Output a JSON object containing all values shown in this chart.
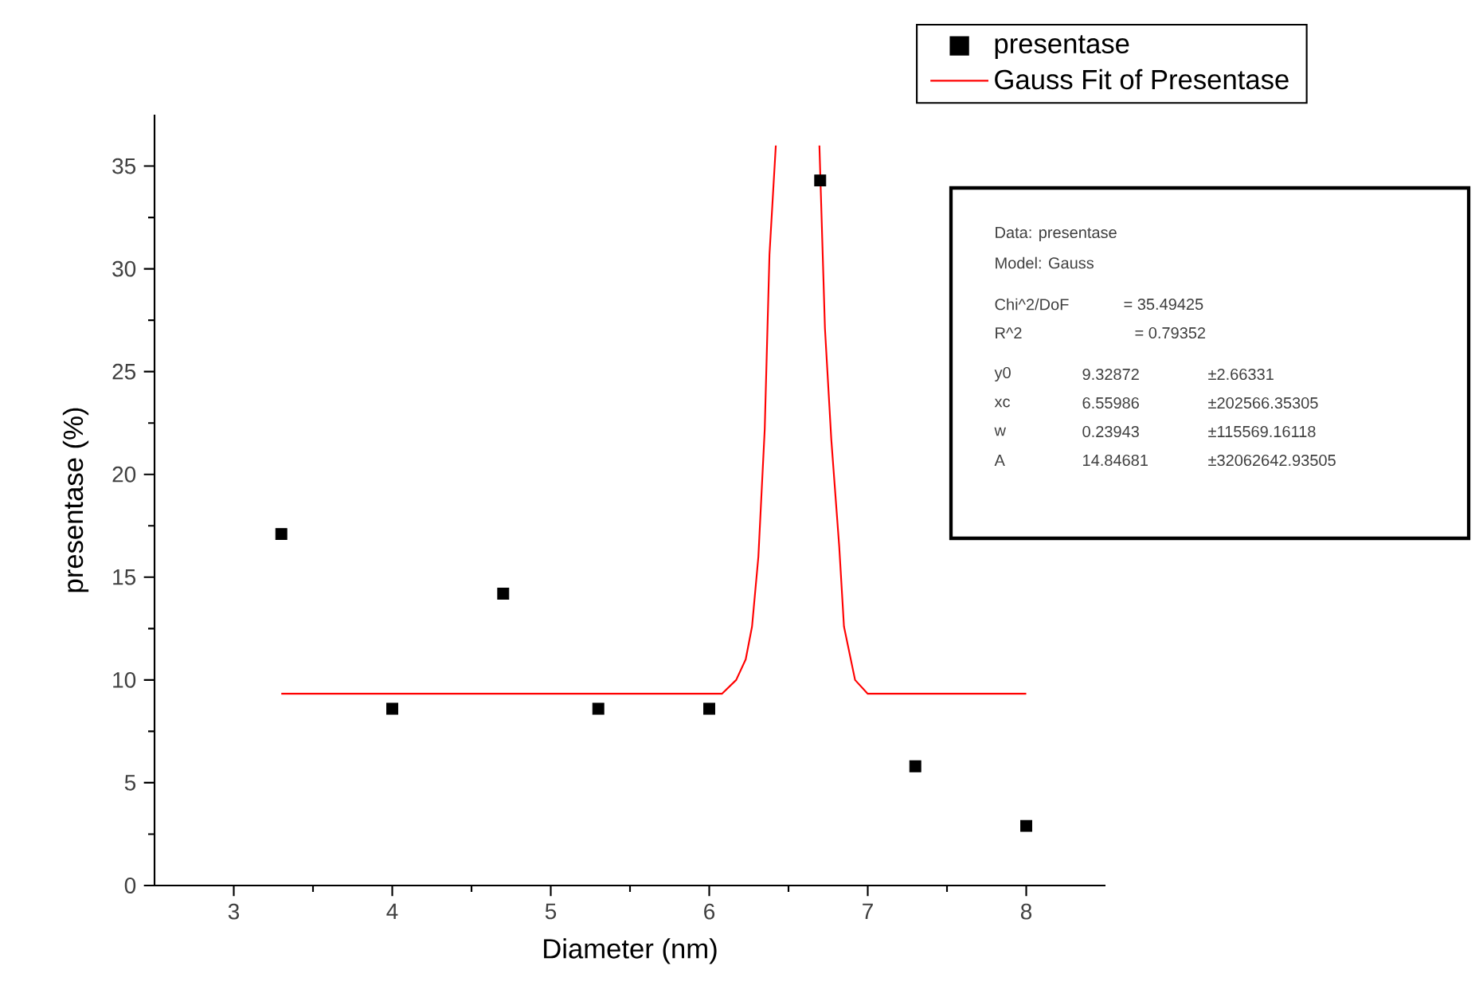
{
  "chart_data": {
    "type": "scatter",
    "xlabel": "Diameter (nm)",
    "ylabel": "presentase (%)",
    "xlim": [
      2.5,
      8.5
    ],
    "xticks": [
      3,
      4,
      5,
      6,
      7,
      8
    ],
    "ylim": [
      0,
      37.5
    ],
    "yticks": [
      0,
      5,
      10,
      15,
      20,
      25,
      30,
      35
    ],
    "x": [
      3.3,
      4,
      4.7,
      5.3,
      6,
      6.7,
      7.3,
      8
    ],
    "marker": "square",
    "legend": "top right",
    "grid": false,
    "series": [
      {
        "name": "presentase",
        "color": "#000000",
        "values": [
          17.1,
          8.6,
          14.2,
          8.6,
          8.6,
          34.3,
          5.8,
          2.9
        ]
      },
      {
        "name": "Gauss Fit of Presentase",
        "type": "line",
        "marker": "none",
        "line_style": "solid",
        "color": "#ff0000",
        "x": [
          3.3,
          6.08,
          6.17,
          6.23,
          6.27,
          6.31,
          6.35,
          6.38,
          6.42,
          6.56,
          6.695,
          6.73,
          6.77,
          6.82,
          6.85,
          6.92,
          7.0,
          8.0
        ],
        "values": [
          9.33,
          9.33,
          10.0,
          11.0,
          12.6,
          16.0,
          22.2,
          30.7,
          36.0,
          null,
          36.0,
          27.1,
          21.7,
          16.5,
          12.6,
          10.0,
          9.33,
          9.33
        ]
      }
    ],
    "annotations": [
      "Data: presentase",
      "Model: Gauss",
      "Chi^2/DoF",
      "= 35.49425",
      "R^2",
      "= 0.79352",
      "y0",
      "9.32872",
      "±2.66331",
      "xc",
      "6.55986",
      "±202566.35305",
      "w",
      "0.23943",
      "±115569.16118",
      "A",
      "14.84681",
      "±32062642.93505"
    ]
  }
}
